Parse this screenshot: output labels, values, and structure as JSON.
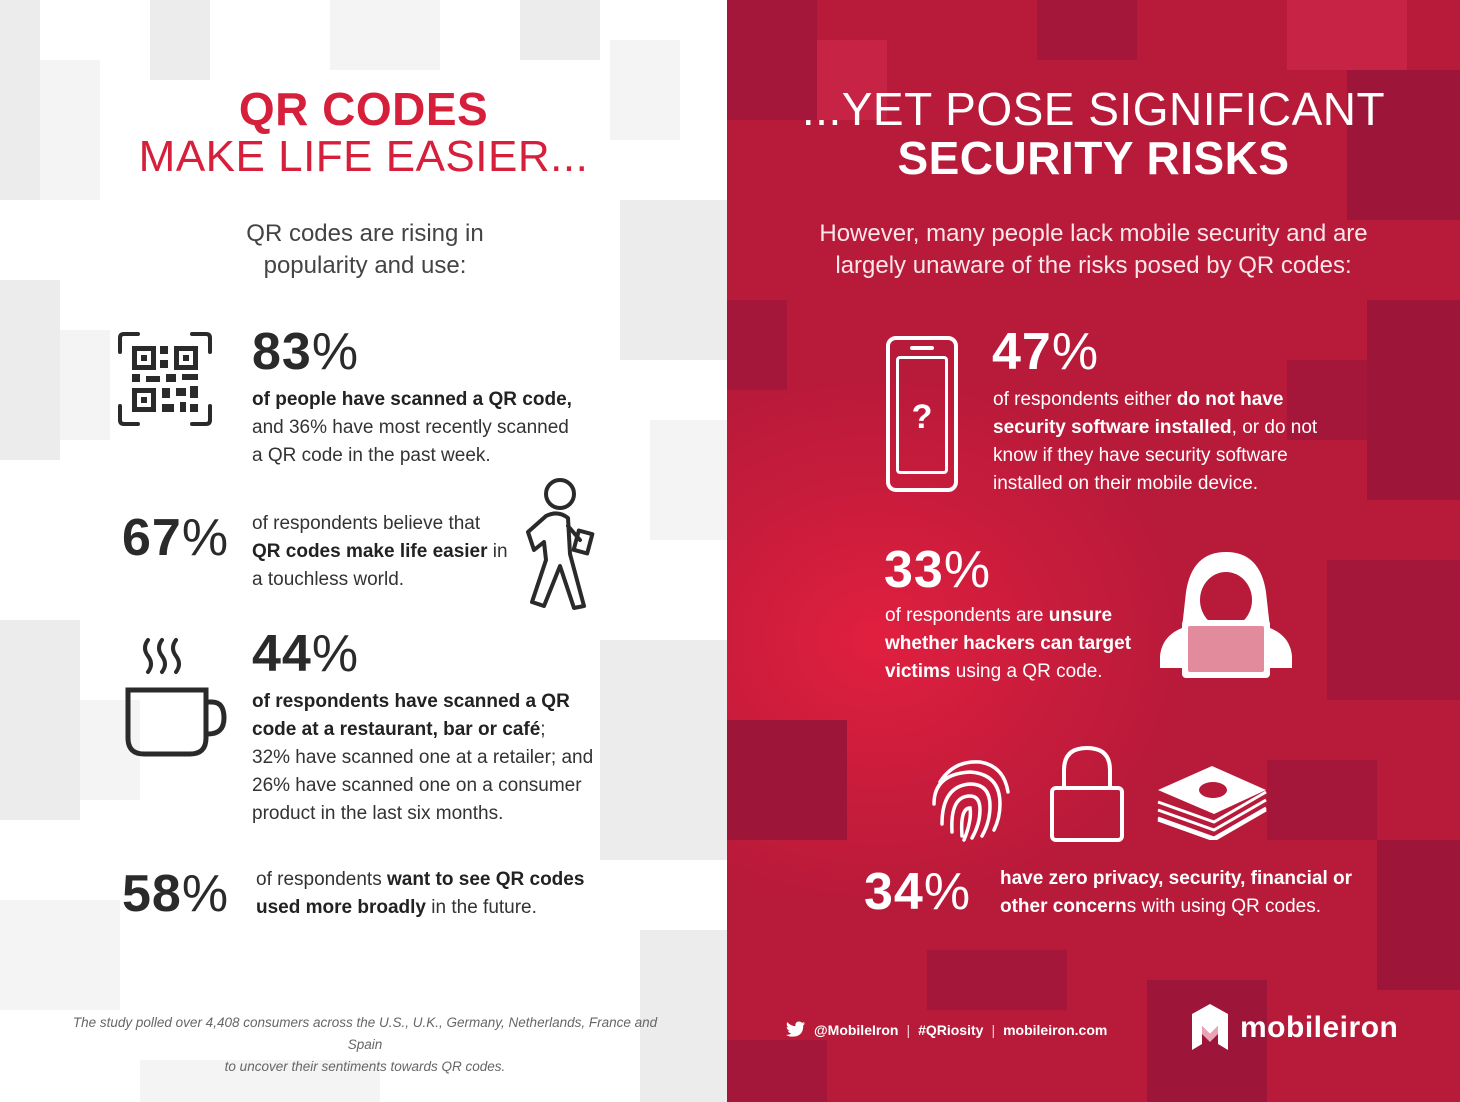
{
  "left": {
    "title_line1": "QR CODES",
    "title_line2": "MAKE LIFE EASIER...",
    "intro_line1": "QR codes are rising in",
    "intro_line2": "popularity and use:",
    "stat1": {
      "value": "83",
      "symbol": "%",
      "line1_bold": "of people have scanned a QR code,",
      "line2": "and 36% have most recently scanned",
      "line3": "a QR code in the past week."
    },
    "stat2": {
      "value": "67",
      "symbol": "%",
      "line1": "of respondents believe that",
      "line2_bold": "QR codes make life easier",
      "line2_rest": " in",
      "line3": "a touchless world."
    },
    "stat3": {
      "value": "44",
      "symbol": "%",
      "line1_bold": "of respondents have scanned a QR",
      "line2_bold": "code at a restaurant, bar or café",
      "line2_rest": ";",
      "line3": "32% have scanned one at a retailer; and",
      "line4": "26% have scanned one on a consumer",
      "line5": "product in the last six months."
    },
    "stat4": {
      "value": "58",
      "symbol": "%",
      "line1_pre": "of respondents ",
      "line1_bold": "want to see QR codes",
      "line2_bold": "used more broadly",
      "line2_rest": " in the future."
    },
    "footnote_line1": "The study polled over 4,408  consumers across the U.S., U.K., Germany, Netherlands, France and Spain",
    "footnote_line2": "to uncover their sentiments towards QR codes."
  },
  "right": {
    "title_line1": "...YET POSE SIGNIFICANT",
    "title_line2": "SECURITY RISKS",
    "intro_line1": "However, many people lack mobile security and are",
    "intro_line2": "largely unaware of the risks posed by QR codes:",
    "stat1": {
      "value": "47",
      "symbol": "%",
      "line1_pre": "of respondents either ",
      "line1_bold": "do not have",
      "line2_bold": "security software installed",
      "line2_rest": ", or do not",
      "line3": "know if they have security software",
      "line4": "installed on their mobile device.",
      "phone_glyph": "?"
    },
    "stat2": {
      "value": "33",
      "symbol": "%",
      "line1_pre": "of respondents are ",
      "line1_bold": "unsure",
      "line2_bold": "whether hackers can target",
      "line3_bold": "victims",
      "line3_rest": " using a QR code."
    },
    "stat3": {
      "value": "34",
      "symbol": "%",
      "line1_bold": "have zero privacy, security, financial or",
      "line2_bold": "other concern",
      "line2_rest": "s with using QR codes."
    },
    "social": {
      "handle": "@MobileIron",
      "sep1": "|",
      "hashtag": "#QRiosity",
      "sep2": "|",
      "site": "mobileiron.com"
    },
    "brand": "mobileiron"
  },
  "colors": {
    "accent_red": "#d61f3b",
    "panel_red": "#b81a3a",
    "dark_text": "#2a2a2a"
  },
  "icons": [
    "qr-code-icon",
    "walking-person-icon",
    "coffee-cup-icon",
    "phone-icon",
    "hacker-icon",
    "fingerprint-icon",
    "padlock-icon",
    "money-stack-icon",
    "twitter-icon",
    "mobileiron-logo-icon"
  ]
}
